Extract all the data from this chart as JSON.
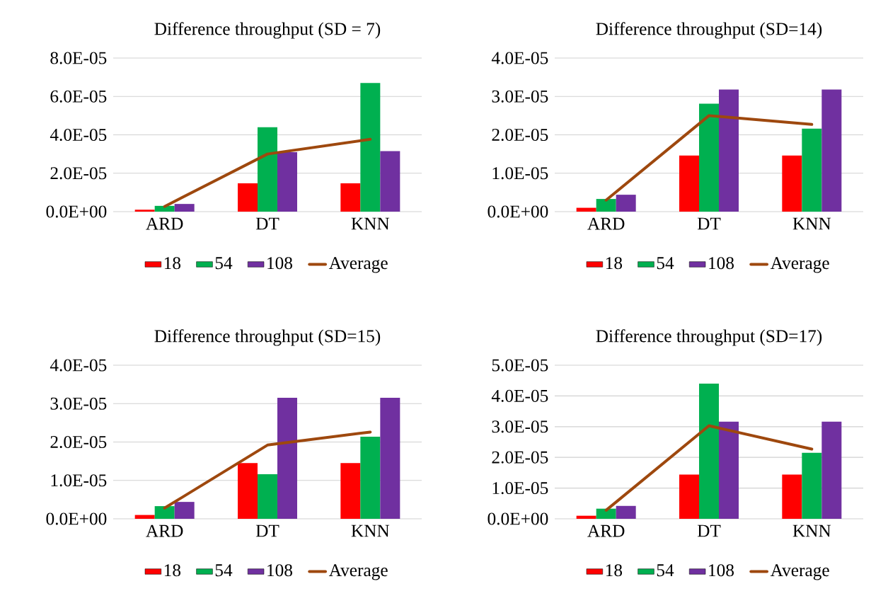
{
  "chart_data": [
    {
      "type": "bar",
      "title": "Difference throughput (SD = 7)",
      "categories": [
        "ARD",
        "DT",
        "KNN"
      ],
      "series": [
        {
          "name": "18",
          "color": "#ff0000",
          "values": [
            1e-06,
            1.47e-05,
            1.47e-05
          ]
        },
        {
          "name": "54",
          "color": "#00b050",
          "values": [
            3e-06,
            4.4e-05,
            6.7e-05
          ]
        },
        {
          "name": "108",
          "color": "#7030a0",
          "values": [
            4e-06,
            3.1e-05,
            3.15e-05
          ]
        },
        {
          "name": "Average",
          "type": "line",
          "color": "#9e480e",
          "values": [
            2.7e-06,
            3e-05,
            3.77e-05
          ]
        }
      ],
      "ylim": [
        0,
        8e-05
      ],
      "yticks": [
        {
          "value": 0,
          "label": "0.0E+00"
        },
        {
          "value": 2e-05,
          "label": "2.0E-05"
        },
        {
          "value": 4e-05,
          "label": "4.0E-05"
        },
        {
          "value": 6e-05,
          "label": "6.0E-05"
        },
        {
          "value": 8e-05,
          "label": "8.0E-05"
        }
      ],
      "grid": "y",
      "legend": "bottom"
    },
    {
      "type": "bar",
      "title": "Difference throughput (SD=14)",
      "categories": [
        "ARD",
        "DT",
        "KNN"
      ],
      "series": [
        {
          "name": "18",
          "color": "#ff0000",
          "values": [
            1e-06,
            1.46e-05,
            1.46e-05
          ]
        },
        {
          "name": "54",
          "color": "#00b050",
          "values": [
            3.3e-06,
            2.81e-05,
            2.16e-05
          ]
        },
        {
          "name": "108",
          "color": "#7030a0",
          "values": [
            4.4e-06,
            3.18e-05,
            3.18e-05
          ]
        },
        {
          "name": "Average",
          "type": "line",
          "color": "#9e480e",
          "values": [
            3e-06,
            2.5e-05,
            2.27e-05
          ]
        }
      ],
      "ylim": [
        0,
        4e-05
      ],
      "yticks": [
        {
          "value": 0,
          "label": "0.0E+00"
        },
        {
          "value": 1e-05,
          "label": "1.0E-05"
        },
        {
          "value": 2e-05,
          "label": "2.0E-05"
        },
        {
          "value": 3e-05,
          "label": "3.0E-05"
        },
        {
          "value": 4e-05,
          "label": "4.0E-05"
        }
      ],
      "grid": "y",
      "legend": "bottom"
    },
    {
      "type": "bar",
      "title": "Difference throughput (SD=15)",
      "categories": [
        "ARD",
        "DT",
        "KNN"
      ],
      "series": [
        {
          "name": "18",
          "color": "#ff0000",
          "values": [
            1e-06,
            1.45e-05,
            1.45e-05
          ]
        },
        {
          "name": "54",
          "color": "#00b050",
          "values": [
            3.3e-06,
            1.16e-05,
            2.14e-05
          ]
        },
        {
          "name": "108",
          "color": "#7030a0",
          "values": [
            4.4e-06,
            3.15e-05,
            3.15e-05
          ]
        },
        {
          "name": "Average",
          "type": "line",
          "color": "#9e480e",
          "values": [
            2.8e-06,
            1.92e-05,
            2.26e-05
          ]
        }
      ],
      "ylim": [
        0,
        4e-05
      ],
      "yticks": [
        {
          "value": 0,
          "label": "0.0E+00"
        },
        {
          "value": 1e-05,
          "label": "1.0E-05"
        },
        {
          "value": 2e-05,
          "label": "2.0E-05"
        },
        {
          "value": 3e-05,
          "label": "3.0E-05"
        },
        {
          "value": 4e-05,
          "label": "4.0E-05"
        }
      ],
      "grid": "y",
      "legend": "bottom"
    },
    {
      "type": "bar",
      "title": "Difference throughput (SD=17)",
      "categories": [
        "ARD",
        "DT",
        "KNN"
      ],
      "series": [
        {
          "name": "18",
          "color": "#ff0000",
          "values": [
            1e-06,
            1.44e-05,
            1.44e-05
          ]
        },
        {
          "name": "54",
          "color": "#00b050",
          "values": [
            3.3e-06,
            4.4e-05,
            2.15e-05
          ]
        },
        {
          "name": "108",
          "color": "#7030a0",
          "values": [
            4.2e-06,
            3.16e-05,
            3.16e-05
          ]
        },
        {
          "name": "Average",
          "type": "line",
          "color": "#9e480e",
          "values": [
            2.8e-06,
            3.03e-05,
            2.27e-05
          ]
        }
      ],
      "ylim": [
        0,
        5e-05
      ],
      "yticks": [
        {
          "value": 0,
          "label": "0.0E+00"
        },
        {
          "value": 1e-05,
          "label": "1.0E-05"
        },
        {
          "value": 2e-05,
          "label": "2.0E-05"
        },
        {
          "value": 3e-05,
          "label": "3.0E-05"
        },
        {
          "value": 4e-05,
          "label": "4.0E-05"
        },
        {
          "value": 5e-05,
          "label": "5.0E-05"
        }
      ],
      "grid": "y",
      "legend": "bottom"
    }
  ]
}
